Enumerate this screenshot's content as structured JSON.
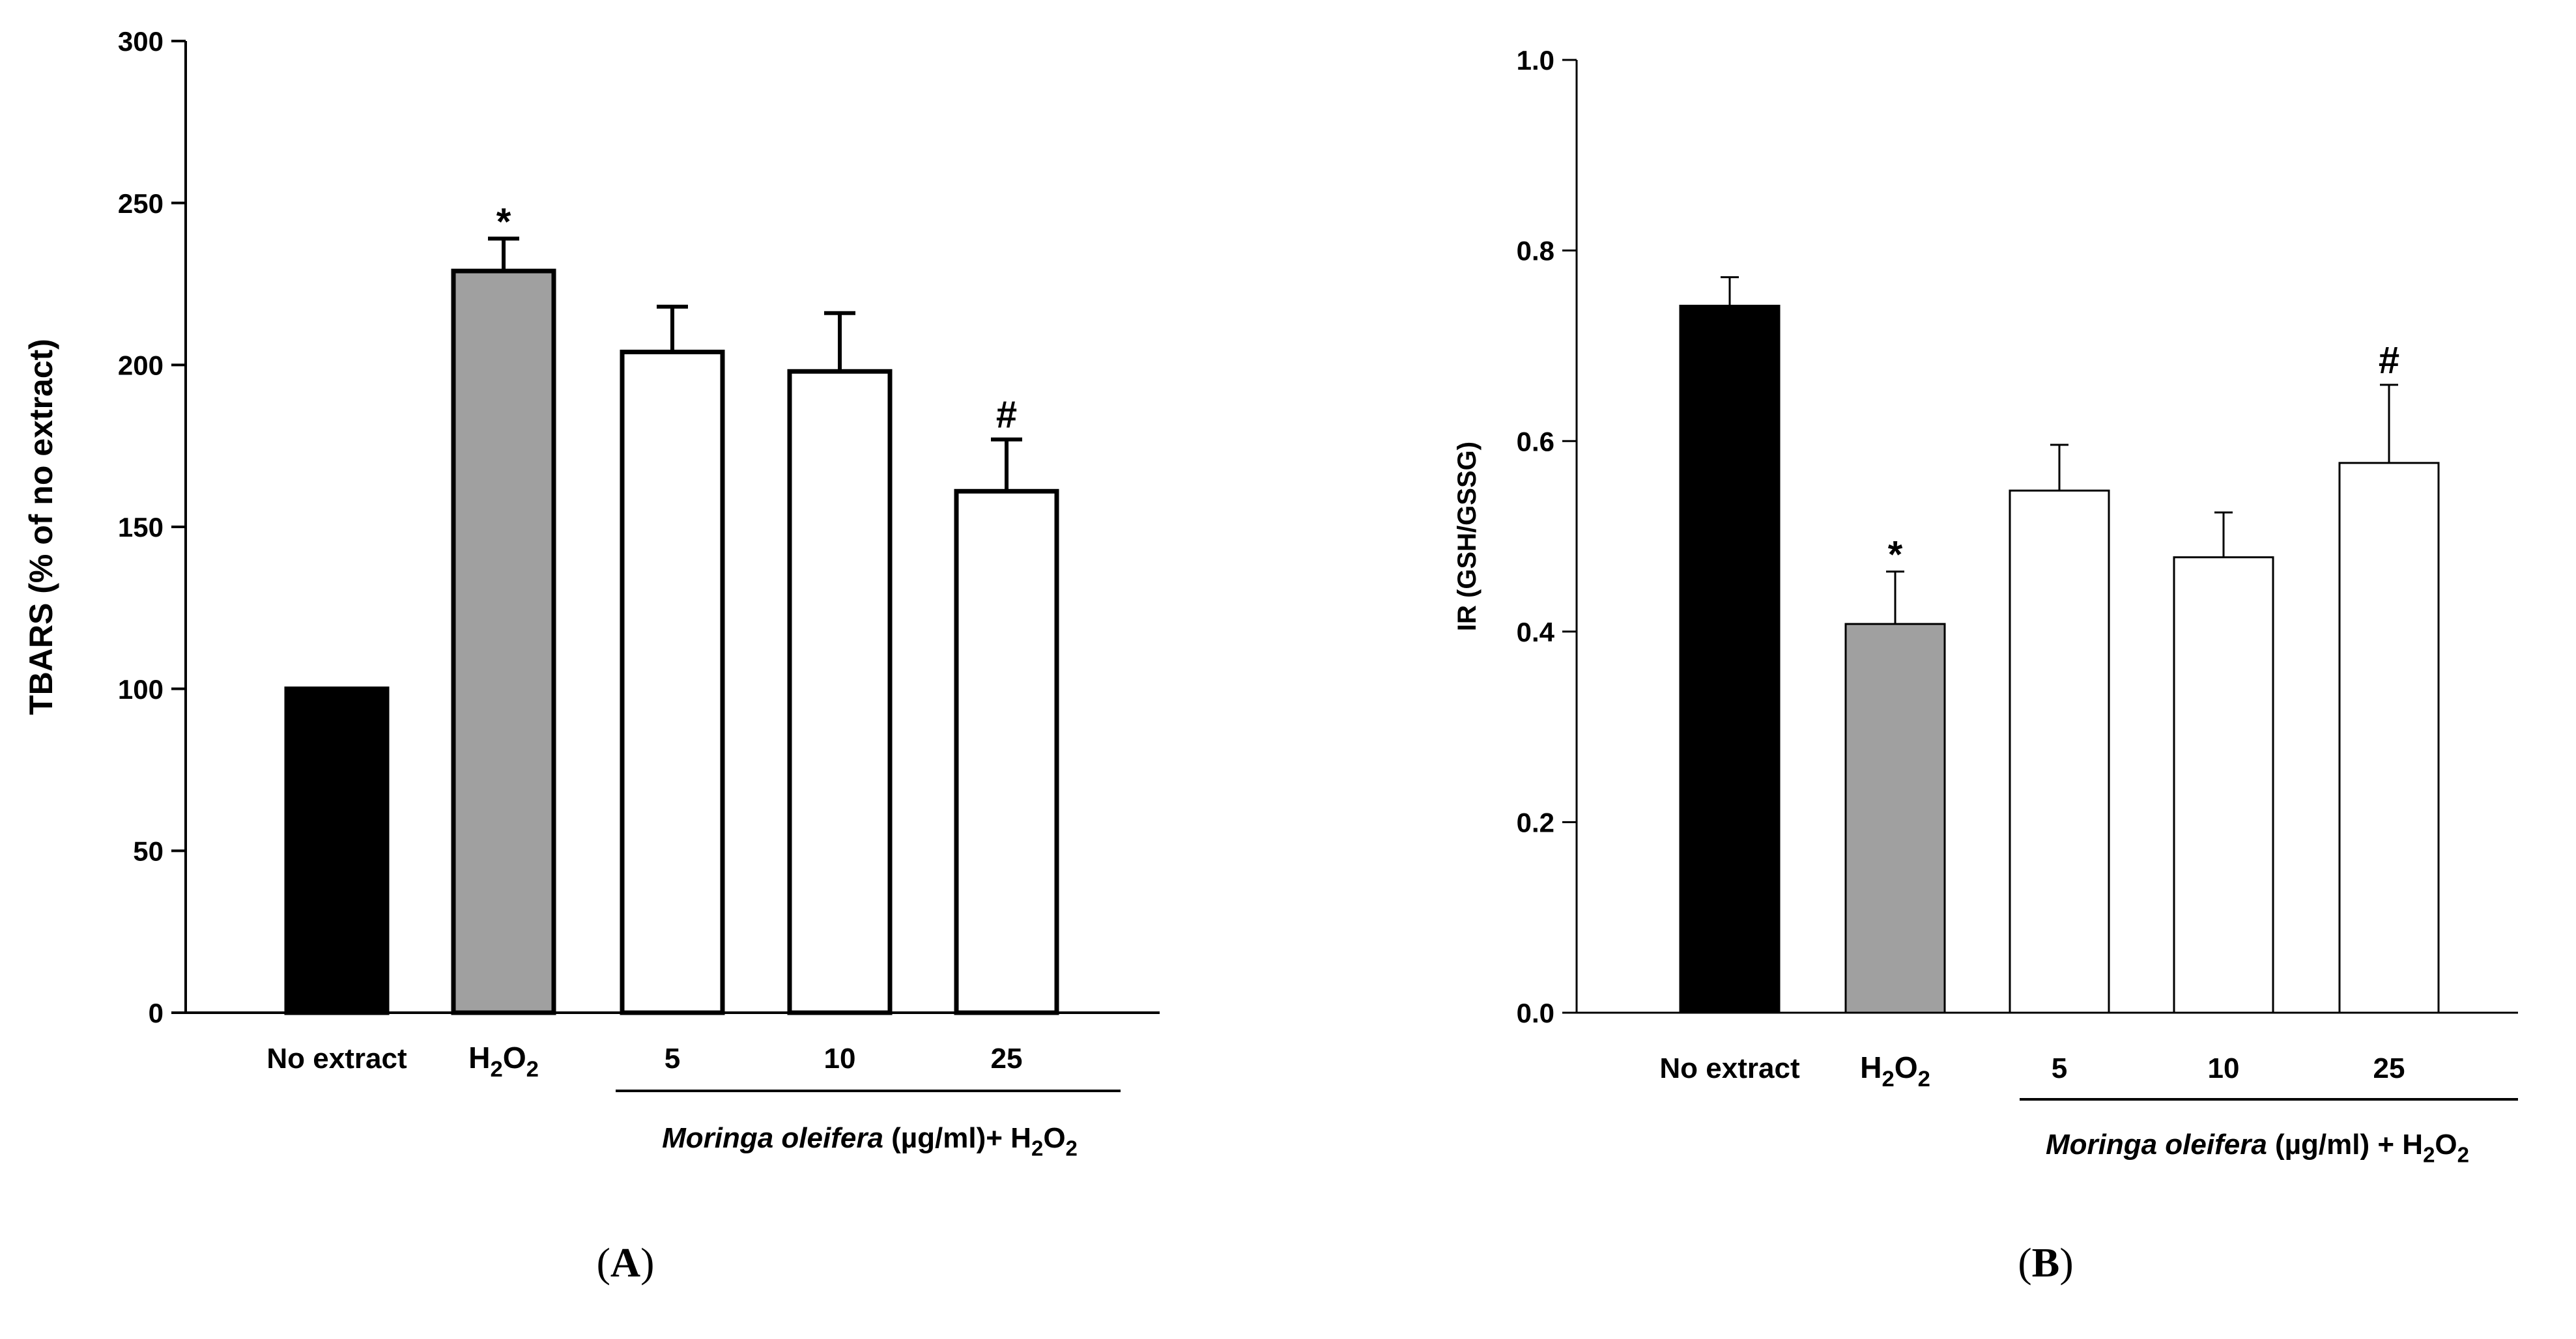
{
  "chart_data": [
    {
      "type": "bar",
      "panel_label": "(A)",
      "panel_letter": "A",
      "ylabel": "TBARS (% of no extract)",
      "ylim": [
        0,
        300
      ],
      "yticks": [
        "0",
        "50",
        "100",
        "150",
        "200",
        "250",
        "300"
      ],
      "categories": [
        "No extract",
        "H2O2",
        "5",
        "10",
        "25"
      ],
      "values": [
        100,
        229,
        204,
        198,
        161
      ],
      "errors": [
        0,
        10,
        14,
        18,
        16
      ],
      "bar_colors": [
        "#000000",
        "#a0a0a0",
        "#ffffff",
        "#ffffff",
        "#ffffff"
      ],
      "annotations": [
        "",
        "*",
        "",
        "",
        "#"
      ],
      "group_label": {
        "italic": "Moringa oleifera",
        "rest": " (µg/ml)+ H",
        "sub1": "2",
        "o": "O",
        "sub2": "2"
      }
    },
    {
      "type": "bar",
      "panel_label": "(B)",
      "panel_letter": "B",
      "ylabel": "IR (GSH/GSSG)",
      "ylim": [
        0,
        1.0
      ],
      "yticks": [
        "0.0",
        "0.2",
        "0.4",
        "0.6",
        "0.8",
        "1.0"
      ],
      "categories": [
        "No extract",
        "H2O2",
        "5",
        "10",
        "25"
      ],
      "values": [
        0.742,
        0.408,
        0.548,
        0.478,
        0.577
      ],
      "errors": [
        0.03,
        0.055,
        0.048,
        0.047,
        0.082
      ],
      "bar_colors": [
        "#000000",
        "#a0a0a0",
        "#ffffff",
        "#ffffff",
        "#ffffff"
      ],
      "annotations": [
        "",
        "*",
        "",
        "",
        "#"
      ],
      "group_label": {
        "italic": "Moringa oleifera",
        "rest": " (µg/ml) + H",
        "sub1": "2",
        "o": "O",
        "sub2": "2"
      }
    }
  ]
}
